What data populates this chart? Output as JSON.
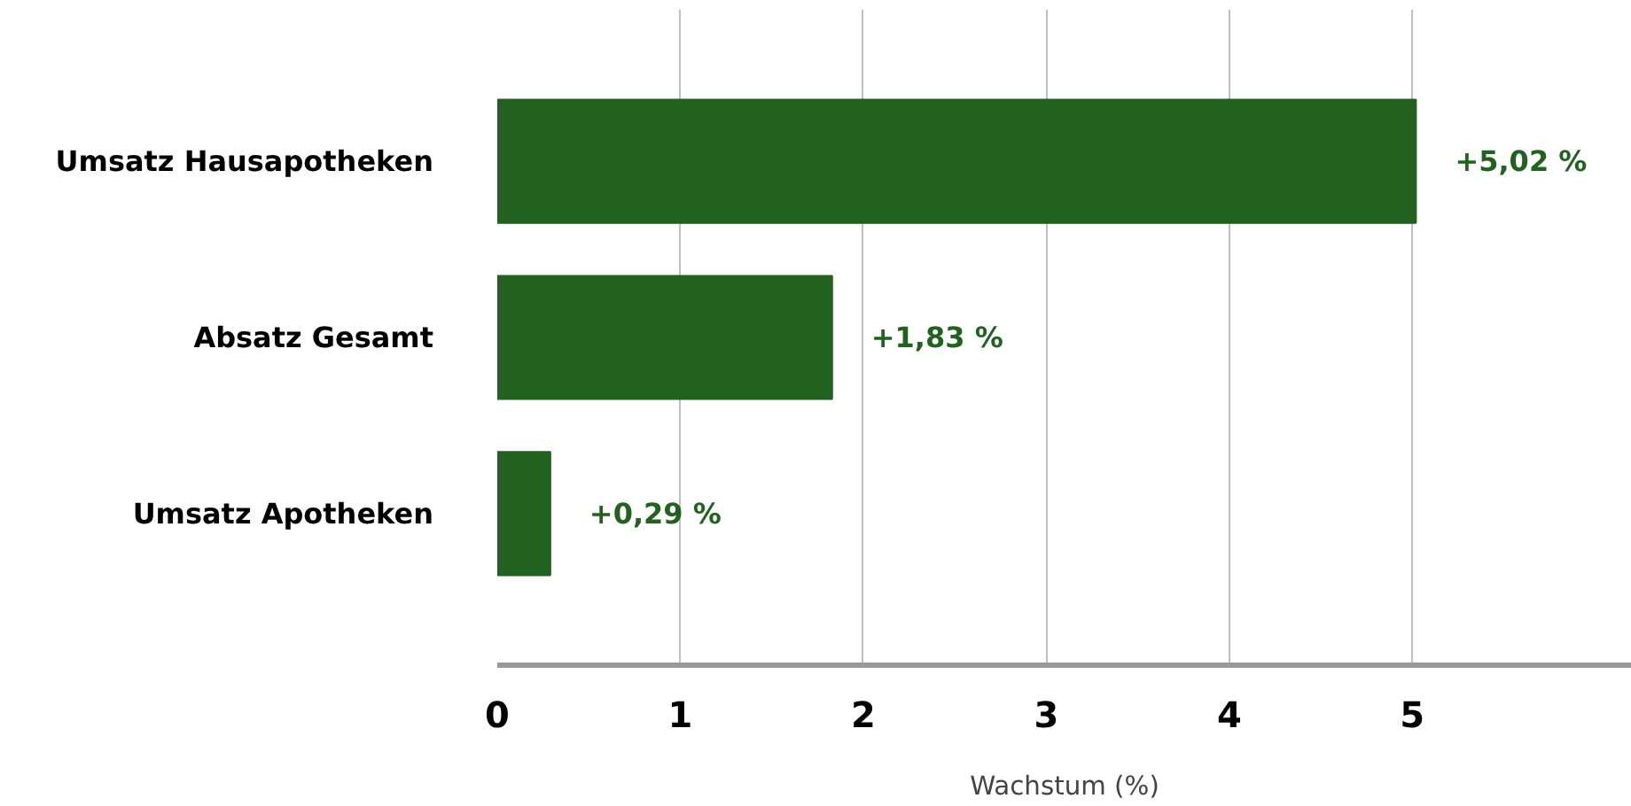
{
  "chart_data": {
    "type": "bar",
    "orientation": "horizontal",
    "xlabel": "Wachstum (%)",
    "categories": [
      "Umsatz Hausapotheken",
      "Absatz Gesamt",
      "Umsatz Apotheken"
    ],
    "values": [
      5.02,
      1.83,
      0.29
    ],
    "value_labels": [
      "+5,02 %",
      "+1,83 %",
      "+0,29 %"
    ],
    "color": "#236120",
    "xlim": [
      0,
      6.2
    ],
    "xticks": [
      0,
      1,
      2,
      3,
      4,
      5
    ],
    "grid": "x"
  }
}
